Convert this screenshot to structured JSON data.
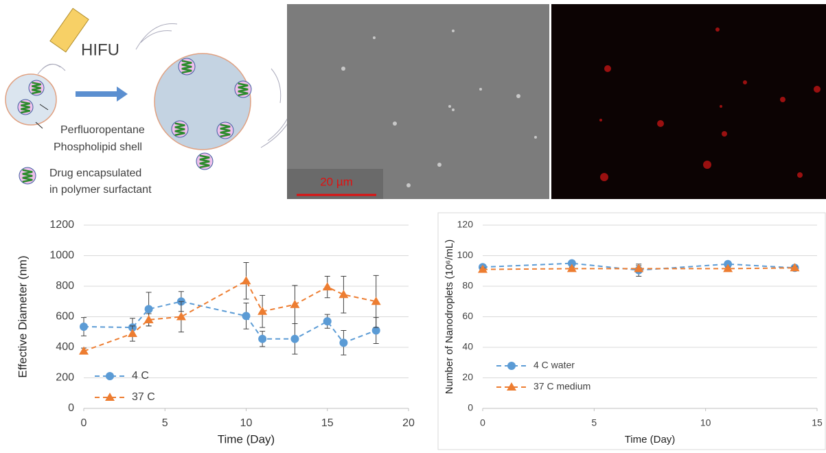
{
  "diagram": {
    "transducer": "HIFU",
    "core": "Perfluoropentane",
    "shell": "Phospholipid shell",
    "drug_line1": "Drug encapsulated",
    "drug_line2": "in polymer surfactant",
    "scale_bar": "20 µm"
  },
  "chart_data": [
    {
      "type": "line",
      "xlabel": "Time (Day)",
      "ylabel": "Effective Diameter (nm)",
      "xlim": [
        0,
        20
      ],
      "xticks": [
        0,
        5,
        10,
        15,
        20
      ],
      "ylim": [
        0,
        1200
      ],
      "yticks": [
        0,
        200,
        400,
        600,
        800,
        1000,
        1200
      ],
      "grid": true,
      "legend": "lower left",
      "border": false,
      "x": [
        0,
        3,
        4,
        6,
        10,
        11,
        13,
        15,
        16,
        18
      ],
      "series": [
        {
          "name": "4 C",
          "color": "#5b9bd5",
          "marker": "circle",
          "values": [
            535,
            530,
            650,
            700,
            605,
            455,
            455,
            570,
            430,
            510
          ],
          "errors": [
            60,
            60,
            110,
            65,
            85,
            50,
            100,
            45,
            80,
            85
          ]
        },
        {
          "name": "37 C",
          "color": "#ed7d31",
          "marker": "triangle",
          "values": [
            375,
            490,
            580,
            600,
            835,
            635,
            680,
            795,
            745,
            700
          ],
          "errors": [
            20,
            50,
            40,
            100,
            120,
            105,
            125,
            70,
            120,
            170
          ]
        }
      ]
    },
    {
      "type": "line",
      "xlabel": "Time (Day)",
      "ylabel": "Number of Nanodroplets (10⁶/mL)",
      "xlim": [
        0,
        15
      ],
      "xticks": [
        0,
        5,
        10,
        15
      ],
      "ylim": [
        0,
        120
      ],
      "yticks": [
        0,
        20,
        40,
        60,
        80,
        100,
        120
      ],
      "grid": true,
      "legend": "lower left",
      "border": true,
      "x": [
        0,
        4,
        7,
        11,
        14
      ],
      "series": [
        {
          "name": "4 C water",
          "color": "#5b9bd5",
          "marker": "circle",
          "values": [
            92.5,
            95,
            90.5,
            94.5,
            92
          ],
          "errors": [
            1,
            1,
            4,
            1,
            1
          ]
        },
        {
          "name": "37 C medium",
          "color": "#ed7d31",
          "marker": "triangle",
          "values": [
            91,
            91.5,
            91.5,
            91.5,
            92
          ],
          "errors": [
            1,
            1,
            2,
            1,
            1
          ]
        }
      ]
    }
  ]
}
